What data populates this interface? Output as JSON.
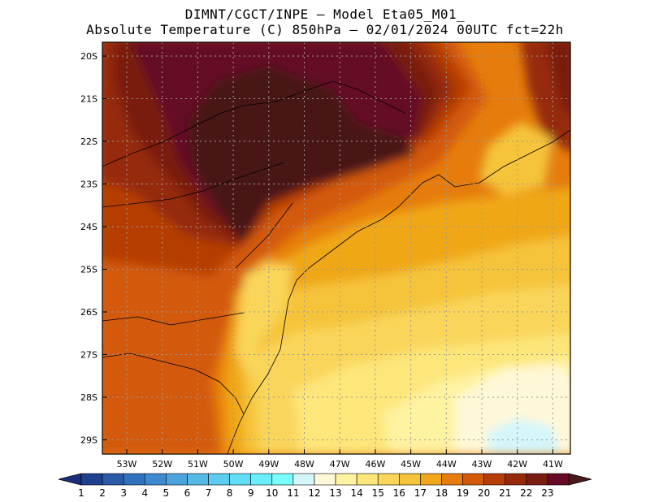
{
  "title": {
    "line1": "DIMNT/CGCT/INPE –  Model Eta05_M01_",
    "line2": "Absolute Temperature (C) 850hPa –  02/01/2024 00UTC fct=22h"
  },
  "axes": {
    "lat_labels": [
      "20S",
      "21S",
      "22S",
      "23S",
      "24S",
      "25S",
      "26S",
      "27S",
      "28S",
      "29S"
    ],
    "lon_labels": [
      "53W",
      "52W",
      "51W",
      "50W",
      "49W",
      "48W",
      "47W",
      "46W",
      "45W",
      "44W",
      "43W",
      "42W",
      "41W"
    ]
  },
  "colorbar": {
    "labels": [
      "1",
      "2",
      "3",
      "4",
      "5",
      "6",
      "7",
      "8",
      "9",
      "10",
      "11",
      "12",
      "13",
      "14",
      "15",
      "16",
      "17",
      "18",
      "19",
      "20",
      "21",
      "22",
      "23"
    ],
    "colors": [
      "#1f3f8f",
      "#2a5aa8",
      "#2f73bf",
      "#3e8ad0",
      "#4aa3dc",
      "#55b9e6",
      "#5ccdf0",
      "#62ddf6",
      "#6aeefb",
      "#7afdfd",
      "#d4f6fb",
      "#fff8d8",
      "#fff2a0",
      "#fde67a",
      "#f9d55a",
      "#f5c43a",
      "#f0a719",
      "#e67c0c",
      "#d35a08",
      "#b63d06",
      "#952a0a",
      "#7a1c10",
      "#660a26"
    ],
    "left_end_color": "#1a2e7a",
    "right_end_color": "#4a1a1a"
  }
}
